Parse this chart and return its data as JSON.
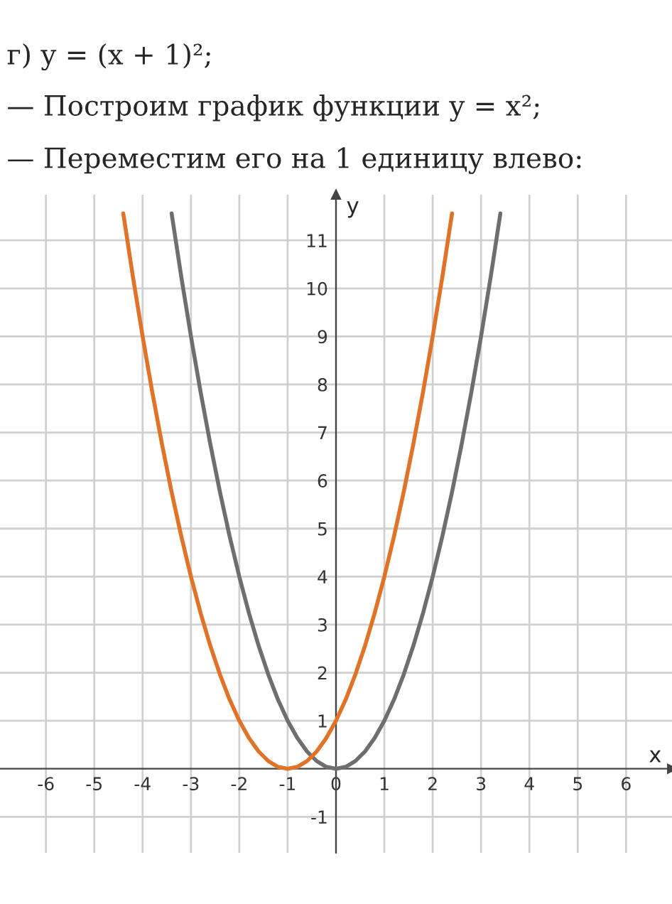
{
  "chart_data": {
    "type": "line",
    "title": "г) y = (x + 1)²;",
    "annotations": [
      "— Построим график функции y = x²;",
      "— Переместим его на 1 единицу влево:"
    ],
    "xlabel": "x",
    "ylabel": "y",
    "xlim": [
      -6.95,
      6.95
    ],
    "ylim": [
      -1.75,
      11.95
    ],
    "xticks": [
      -6,
      -5,
      -4,
      -3,
      -2,
      -1,
      0,
      1,
      2,
      3,
      4,
      5,
      6
    ],
    "yticks": [
      -1,
      1,
      2,
      3,
      4,
      5,
      6,
      7,
      8,
      9,
      10,
      11
    ],
    "grid": true,
    "marker": "none",
    "line_style": "solid",
    "series": [
      {
        "color": "#6e6e6e",
        "x": [
          -3.4,
          -3.2,
          -3.0,
          -2.8,
          -2.6,
          -2.4,
          -2.2,
          -2.0,
          -1.8,
          -1.6,
          -1.4,
          -1.2,
          -1.0,
          -0.8,
          -0.6,
          -0.4,
          -0.2,
          0,
          0.2,
          0.4,
          0.6,
          0.8,
          1.0,
          1.2,
          1.4,
          1.6,
          1.8,
          2.0,
          2.2,
          2.4,
          2.6,
          2.8,
          3.0,
          3.2,
          3.4
        ],
        "values": [
          11.56,
          10.24,
          9,
          7.84,
          6.76,
          5.76,
          4.84,
          4,
          3.24,
          2.56,
          1.96,
          1.44,
          1,
          0.64,
          0.36,
          0.16,
          0.04,
          0,
          0.04,
          0.16,
          0.36,
          0.64,
          1,
          1.44,
          1.96,
          2.56,
          3.24,
          4,
          4.84,
          5.76,
          6.76,
          7.84,
          9,
          10.24,
          11.56
        ]
      },
      {
        "color": "#e07328",
        "x": [
          -4.4,
          -4.2,
          -4.0,
          -3.8,
          -3.6,
          -3.4,
          -3.2,
          -3.0,
          -2.8,
          -2.6,
          -2.4,
          -2.2,
          -2.0,
          -1.8,
          -1.6,
          -1.4,
          -1.2,
          -1.0,
          -0.8,
          -0.6,
          -0.4,
          -0.2,
          0,
          0.2,
          0.4,
          0.6,
          0.8,
          1.0,
          1.2,
          1.4,
          1.6,
          1.8,
          2.0,
          2.2,
          2.4
        ],
        "values": [
          11.56,
          10.24,
          9,
          7.84,
          6.76,
          5.76,
          4.84,
          4,
          3.24,
          2.56,
          1.96,
          1.44,
          1,
          0.64,
          0.36,
          0.16,
          0.04,
          0,
          0.04,
          0.16,
          0.36,
          0.64,
          1,
          1.44,
          1.96,
          2.56,
          3.24,
          4,
          4.84,
          5.76,
          6.76,
          7.84,
          9,
          10.24,
          11.56
        ]
      }
    ]
  }
}
